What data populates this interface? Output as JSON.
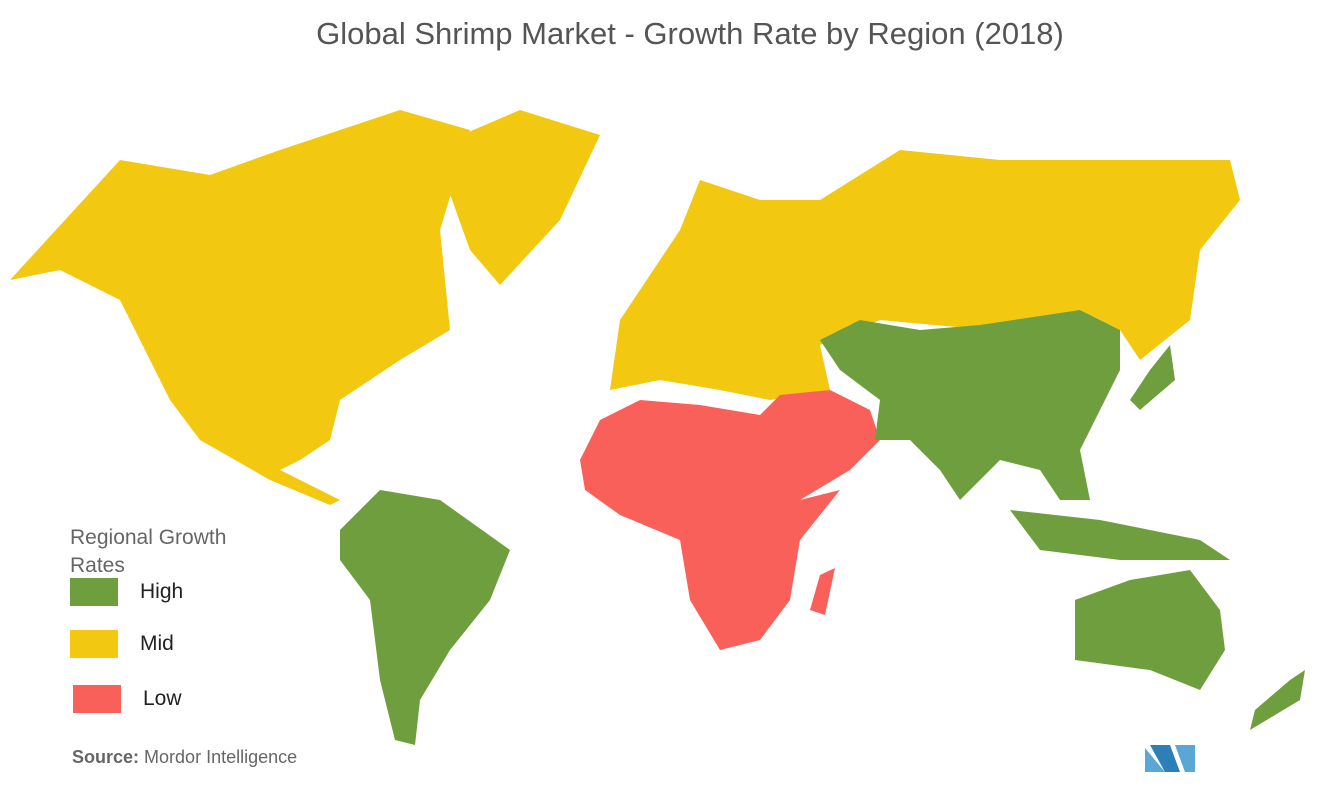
{
  "title": "Global Shrimp Market  - Growth Rate by Region (2018)",
  "legend": {
    "title": "Regional Growth Rates",
    "items": [
      {
        "label": "High",
        "color": "#6f9e3f"
      },
      {
        "label": "Mid",
        "color": "#f2c811"
      },
      {
        "label": "Low",
        "color": "#f9605a"
      }
    ]
  },
  "source": {
    "label": "Source:",
    "text": "Mordor Intelligence"
  }
}
